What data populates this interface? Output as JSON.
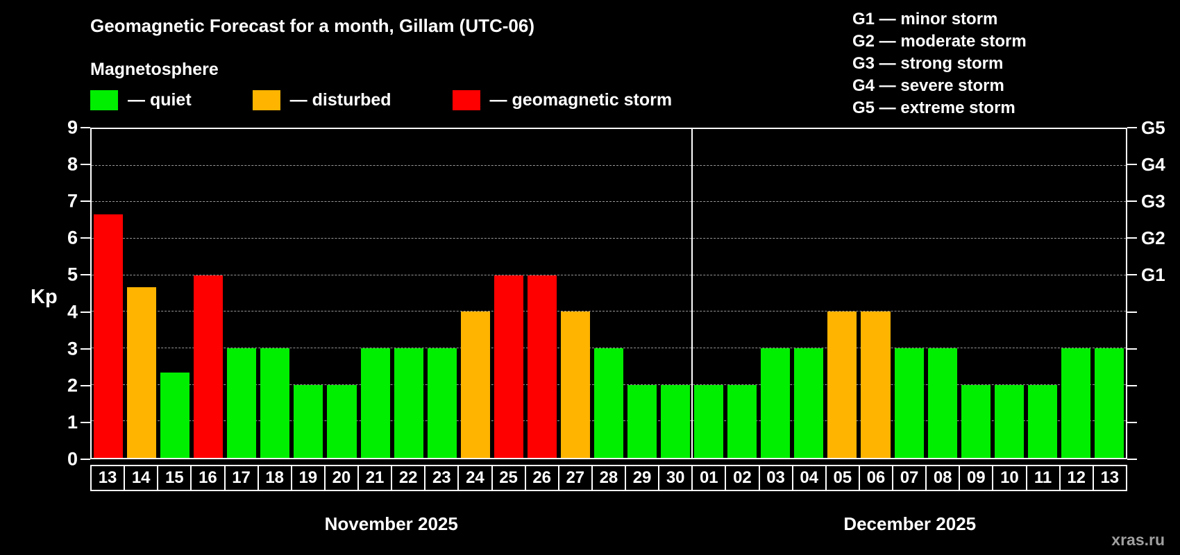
{
  "header": {
    "title": "Geomagnetic Forecast for a month, Gillam (UTC-06)",
    "subtitle": "Magnetosphere"
  },
  "legend": {
    "items": [
      {
        "status": "quiet",
        "label": "— quiet"
      },
      {
        "status": "disturbed",
        "label": "— disturbed"
      },
      {
        "status": "storm",
        "label": "— geomagnetic storm"
      }
    ]
  },
  "g_legend": [
    "G1 — minor storm",
    "G2 — moderate storm",
    "G3 — strong storm",
    "G4 — severe storm",
    "G5 — extreme storm"
  ],
  "colors": {
    "quiet": "#00ee00",
    "disturbed": "#ffb400",
    "storm": "#ff0000"
  },
  "axis": {
    "kp_label": "Kp",
    "y_ticks": [
      0,
      1,
      2,
      3,
      4,
      5,
      6,
      7,
      8,
      9
    ],
    "g_ticks": [
      {
        "label": "G1",
        "kp": 5
      },
      {
        "label": "G2",
        "kp": 6
      },
      {
        "label": "G3",
        "kp": 7
      },
      {
        "label": "G4",
        "kp": 8
      },
      {
        "label": "G5",
        "kp": 9
      }
    ]
  },
  "watermark": "xras.ru",
  "chart_data": {
    "type": "bar",
    "title": "Geomagnetic Forecast for a month, Gillam (UTC-06)",
    "xlabel": "",
    "ylabel": "Kp",
    "ylim": [
      0,
      9
    ],
    "grid": "dashed horizontal at each integer Kp",
    "month_split": 18,
    "months": [
      {
        "label": "November 2025",
        "days": 18
      },
      {
        "label": "December 2025",
        "days": 13
      }
    ],
    "points": [
      {
        "month": "nov",
        "day": "13",
        "kp": 6.67,
        "status": "storm"
      },
      {
        "month": "nov",
        "day": "14",
        "kp": 4.67,
        "status": "disturbed"
      },
      {
        "month": "nov",
        "day": "15",
        "kp": 2.33,
        "status": "quiet"
      },
      {
        "month": "nov",
        "day": "16",
        "kp": 5,
        "status": "storm"
      },
      {
        "month": "nov",
        "day": "17",
        "kp": 3,
        "status": "quiet"
      },
      {
        "month": "nov",
        "day": "18",
        "kp": 3,
        "status": "quiet"
      },
      {
        "month": "nov",
        "day": "19",
        "kp": 2,
        "status": "quiet"
      },
      {
        "month": "nov",
        "day": "20",
        "kp": 2,
        "status": "quiet"
      },
      {
        "month": "nov",
        "day": "21",
        "kp": 3,
        "status": "quiet"
      },
      {
        "month": "nov",
        "day": "22",
        "kp": 3,
        "status": "quiet"
      },
      {
        "month": "nov",
        "day": "23",
        "kp": 3,
        "status": "quiet"
      },
      {
        "month": "nov",
        "day": "24",
        "kp": 4,
        "status": "disturbed"
      },
      {
        "month": "nov",
        "day": "25",
        "kp": 5,
        "status": "storm"
      },
      {
        "month": "nov",
        "day": "26",
        "kp": 5,
        "status": "storm"
      },
      {
        "month": "nov",
        "day": "27",
        "kp": 4,
        "status": "disturbed"
      },
      {
        "month": "nov",
        "day": "28",
        "kp": 3,
        "status": "quiet"
      },
      {
        "month": "nov",
        "day": "29",
        "kp": 2,
        "status": "quiet"
      },
      {
        "month": "nov",
        "day": "30",
        "kp": 2,
        "status": "quiet"
      },
      {
        "month": "dec",
        "day": "01",
        "kp": 2,
        "status": "quiet"
      },
      {
        "month": "dec",
        "day": "02",
        "kp": 2,
        "status": "quiet"
      },
      {
        "month": "dec",
        "day": "03",
        "kp": 3,
        "status": "quiet"
      },
      {
        "month": "dec",
        "day": "04",
        "kp": 3,
        "status": "quiet"
      },
      {
        "month": "dec",
        "day": "05",
        "kp": 4,
        "status": "disturbed"
      },
      {
        "month": "dec",
        "day": "06",
        "kp": 4,
        "status": "disturbed"
      },
      {
        "month": "dec",
        "day": "07",
        "kp": 3,
        "status": "quiet"
      },
      {
        "month": "dec",
        "day": "08",
        "kp": 3,
        "status": "quiet"
      },
      {
        "month": "dec",
        "day": "09",
        "kp": 2,
        "status": "quiet"
      },
      {
        "month": "dec",
        "day": "10",
        "kp": 2,
        "status": "quiet"
      },
      {
        "month": "dec",
        "day": "11",
        "kp": 2,
        "status": "quiet"
      },
      {
        "month": "dec",
        "day": "12",
        "kp": 3,
        "status": "quiet"
      },
      {
        "month": "dec",
        "day": "13",
        "kp": 3,
        "status": "quiet"
      }
    ]
  }
}
